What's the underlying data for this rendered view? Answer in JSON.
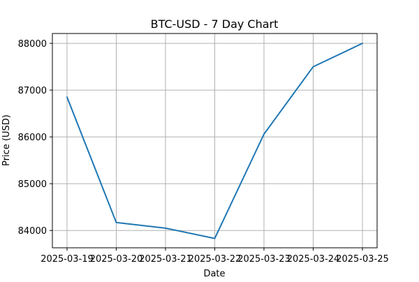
{
  "chart_data": {
    "type": "line",
    "title": "BTC-USD - 7 Day Chart",
    "xlabel": "Date",
    "ylabel": "Price (USD)",
    "x": [
      "2025-03-19",
      "2025-03-20",
      "2025-03-21",
      "2025-03-22",
      "2025-03-23",
      "2025-03-24",
      "2025-03-25"
    ],
    "series": [
      {
        "values": [
          86850,
          84170,
          84050,
          83830,
          86060,
          87500,
          88000
        ],
        "color": "#1f77b4"
      }
    ],
    "yticks": [
      84000,
      85000,
      86000,
      87000,
      88000
    ],
    "ytick_labels": [
      "84000",
      "85000",
      "86000",
      "87000",
      "88000"
    ],
    "ylim": [
      83630,
      88210
    ],
    "grid": true,
    "legend": null
  }
}
